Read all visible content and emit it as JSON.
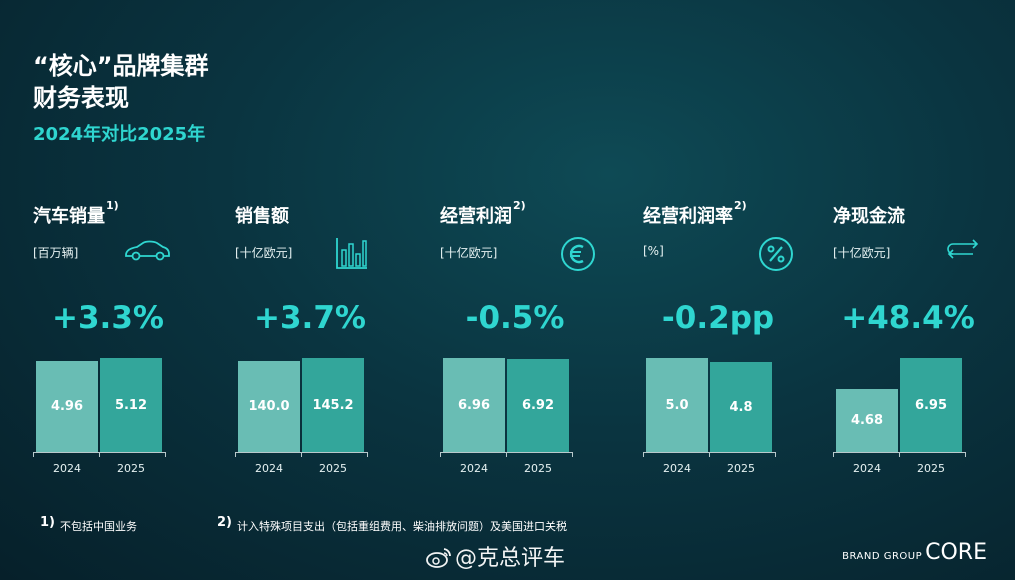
{
  "title_line1": "“核心”品牌集群",
  "title_line2": "财务表现",
  "subtitle": "2024年对比2025年",
  "colors": {
    "accent": "#2fd6d0",
    "bar_2024": "#69bdb4",
    "bar_2025": "#33a69b"
  },
  "chart_data": [
    {
      "type": "bar",
      "title": "汽车销量",
      "footnote_ref": "1)",
      "unit": "[百万辆]",
      "icon": "car-icon",
      "change": "+3.3%",
      "categories": [
        "2024",
        "2025"
      ],
      "values": [
        4.96,
        5.12
      ],
      "labels": [
        "4.96",
        "5.12"
      ]
    },
    {
      "type": "bar",
      "title": "销售额",
      "footnote_ref": "",
      "unit": "[十亿欧元]",
      "icon": "bar-chart-icon",
      "change": "+3.7%",
      "categories": [
        "2024",
        "2025"
      ],
      "values": [
        140.0,
        145.2
      ],
      "labels": [
        "140.0",
        "145.2"
      ]
    },
    {
      "type": "bar",
      "title": "经营利润",
      "footnote_ref": "2)",
      "unit": "[十亿欧元]",
      "icon": "euro-icon",
      "change": "-0.5%",
      "categories": [
        "2024",
        "2025"
      ],
      "values": [
        6.96,
        6.92
      ],
      "labels": [
        "6.96",
        "6.92"
      ]
    },
    {
      "type": "bar",
      "title": "经营利润率",
      "footnote_ref": "2)",
      "unit": "[%]",
      "icon": "percent-icon",
      "change": "-0.2pp",
      "categories": [
        "2024",
        "2025"
      ],
      "values": [
        5.0,
        4.8
      ],
      "labels": [
        "5.0",
        "4.8"
      ]
    },
    {
      "type": "bar",
      "title": "净现金流",
      "footnote_ref": "",
      "unit": "[十亿欧元]",
      "icon": "exchange-arrows-icon",
      "change": "+48.4%",
      "categories": [
        "2024",
        "2025"
      ],
      "values": [
        4.68,
        6.95
      ],
      "labels": [
        "4.68",
        "6.95"
      ]
    }
  ],
  "footnotes": [
    {
      "num": "1)",
      "text": "不包括中国业务"
    },
    {
      "num": "2)",
      "text": "计入特殊项目支出（包括重组费用、柴油排放问题）及美国进口关税"
    }
  ],
  "watermark": "@克总评车",
  "brand": {
    "small": "BRAND GROUP",
    "big": "CORE"
  }
}
